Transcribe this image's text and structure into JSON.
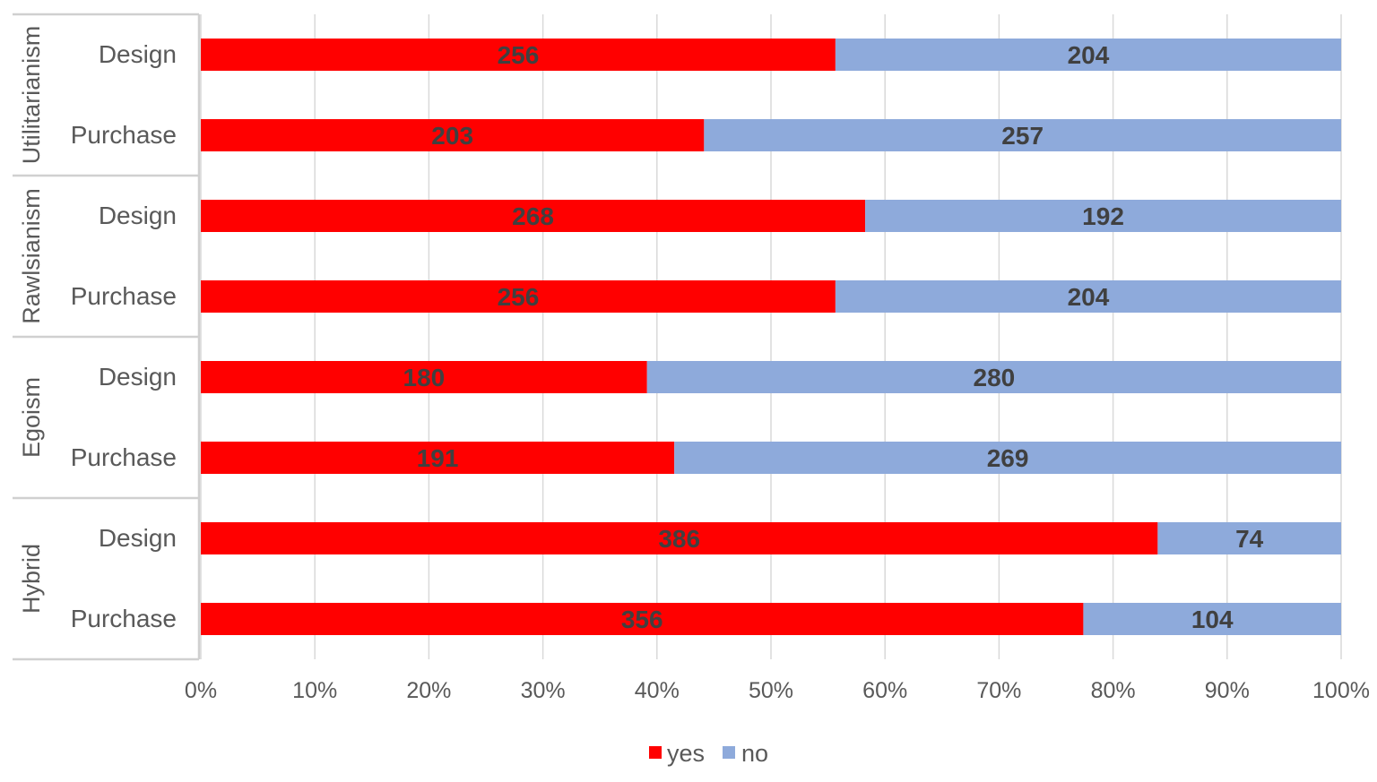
{
  "chart_data": {
    "type": "bar",
    "orientation": "horizontal",
    "stacked": "percent",
    "title": "",
    "xlabel": "",
    "ylabel": "",
    "xlim": [
      0,
      100
    ],
    "x_ticks": [
      "0%",
      "10%",
      "20%",
      "30%",
      "40%",
      "50%",
      "60%",
      "70%",
      "80%",
      "90%",
      "100%"
    ],
    "grid": true,
    "legend_position": "bottom",
    "groups": [
      {
        "name": "Utilitarianism",
        "categories": [
          "Design",
          "Purchase"
        ]
      },
      {
        "name": "Rawlsianism",
        "categories": [
          "Design",
          "Purchase"
        ]
      },
      {
        "name": "Egoism",
        "categories": [
          "Design",
          "Purchase"
        ]
      },
      {
        "name": "Hybrid",
        "categories": [
          "Design",
          "Purchase"
        ]
      }
    ],
    "series": [
      {
        "name": "yes",
        "color": "#ff0000",
        "values": [
          256,
          203,
          268,
          256,
          180,
          191,
          386,
          356
        ]
      },
      {
        "name": "no",
        "color": "#8eaadb",
        "values": [
          204,
          257,
          192,
          204,
          280,
          269,
          74,
          104
        ]
      }
    ]
  }
}
